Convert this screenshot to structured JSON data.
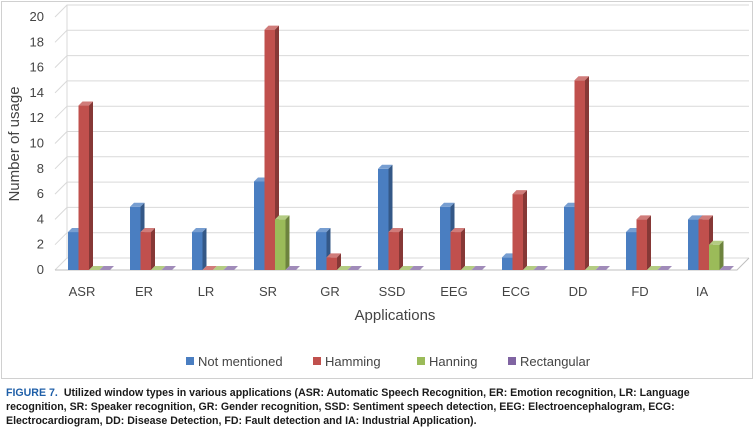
{
  "chart_data": {
    "type": "bar",
    "categories": [
      "ASR",
      "ER",
      "LR",
      "SR",
      "GR",
      "SSD",
      "EEG",
      "ECG",
      "DD",
      "FD",
      "IA"
    ],
    "series": [
      {
        "name": "Not mentioned",
        "color": "#4a7ec1",
        "values": [
          3,
          5,
          3,
          7,
          3,
          8,
          5,
          1,
          5,
          3,
          4
        ]
      },
      {
        "name": "Hamming",
        "color": "#c0504d",
        "values": [
          13,
          3,
          0,
          19,
          1,
          3,
          3,
          6,
          15,
          4,
          4
        ]
      },
      {
        "name": "Hanning",
        "color": "#9bbb59",
        "values": [
          0,
          0,
          0,
          4,
          0,
          0,
          0,
          0,
          0,
          0,
          2
        ]
      },
      {
        "name": "Rectangular",
        "color": "#8064a2",
        "values": [
          0,
          0,
          0,
          0,
          0,
          0,
          0,
          0,
          0,
          0,
          0
        ]
      }
    ],
    "xlabel": "Applications",
    "ylabel": "Number of usage",
    "ylim": [
      0,
      20
    ],
    "yticks": [
      0,
      2,
      4,
      6,
      8,
      10,
      12,
      14,
      16,
      18,
      20
    ],
    "grid": true,
    "legend": "bottom",
    "style": "3d-bar"
  },
  "caption": {
    "label": "FIGURE 7.",
    "text": "Utilized window types in various applications (ASR: Automatic Speech Recognition, ER: Emotion recognition, LR: Language recognition, SR: Speaker recognition, GR: Gender recognition, SSD: Sentiment speech detection, EEG: Electroencephalogram, ECG: Electrocardiogram, DD: Disease Detection, FD: Fault detection and IA: Industrial Application)."
  }
}
